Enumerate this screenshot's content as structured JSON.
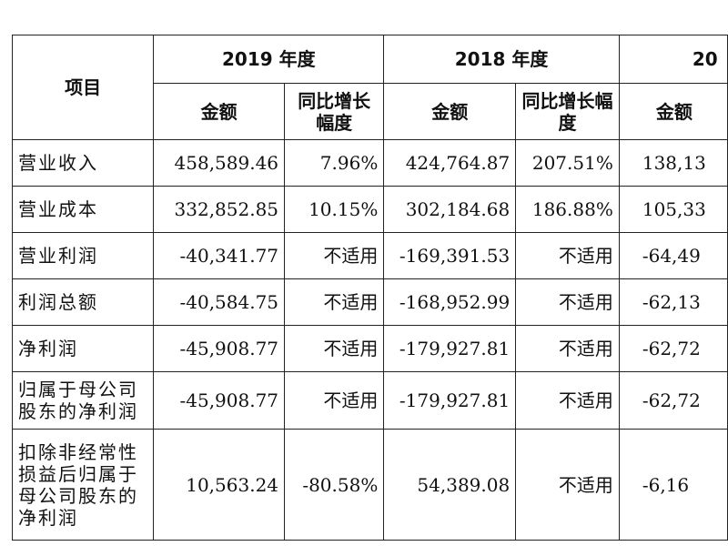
{
  "table": {
    "item_header": "项目",
    "years": [
      "2019 年度",
      "2018 年度",
      "20"
    ],
    "sub_headers": [
      "金额",
      "同比增长幅度",
      "金额",
      "同比增长幅度",
      "金额"
    ],
    "rows": [
      {
        "label": "营业收入",
        "y2019_amount": "458,589.46",
        "y2019_growth": "7.96%",
        "y2018_amount": "424,764.87",
        "y2018_growth": "207.51%",
        "y2017_amount": "138,13"
      },
      {
        "label": "营业成本",
        "y2019_amount": "332,852.85",
        "y2019_growth": "10.15%",
        "y2018_amount": "302,184.68",
        "y2018_growth": "186.88%",
        "y2017_amount": "105,33"
      },
      {
        "label": "营业利润",
        "y2019_amount": "-40,341.77",
        "y2019_growth": "不适用",
        "y2018_amount": "-169,391.53",
        "y2018_growth": "不适用",
        "y2017_amount": "-64,49"
      },
      {
        "label": "利润总额",
        "y2019_amount": "-40,584.75",
        "y2019_growth": "不适用",
        "y2018_amount": "-168,952.99",
        "y2018_growth": "不适用",
        "y2017_amount": "-62,13"
      },
      {
        "label": "净利润",
        "y2019_amount": "-45,908.77",
        "y2019_growth": "不适用",
        "y2018_amount": "-179,927.81",
        "y2018_growth": "不适用",
        "y2017_amount": "-62,72"
      },
      {
        "label": "归属于母公司股东的净利润",
        "y2019_amount": "-45,908.77",
        "y2019_growth": "不适用",
        "y2018_amount": "-179,927.81",
        "y2018_growth": "不适用",
        "y2017_amount": "-62,72"
      },
      {
        "label": "扣除非经常性损益后归属于母公司股东的净利润",
        "y2019_amount": "10,563.24",
        "y2019_growth": "-80.58%",
        "y2018_amount": "54,389.08",
        "y2018_growth": "不适用",
        "y2017_amount": "-6,16"
      }
    ]
  }
}
